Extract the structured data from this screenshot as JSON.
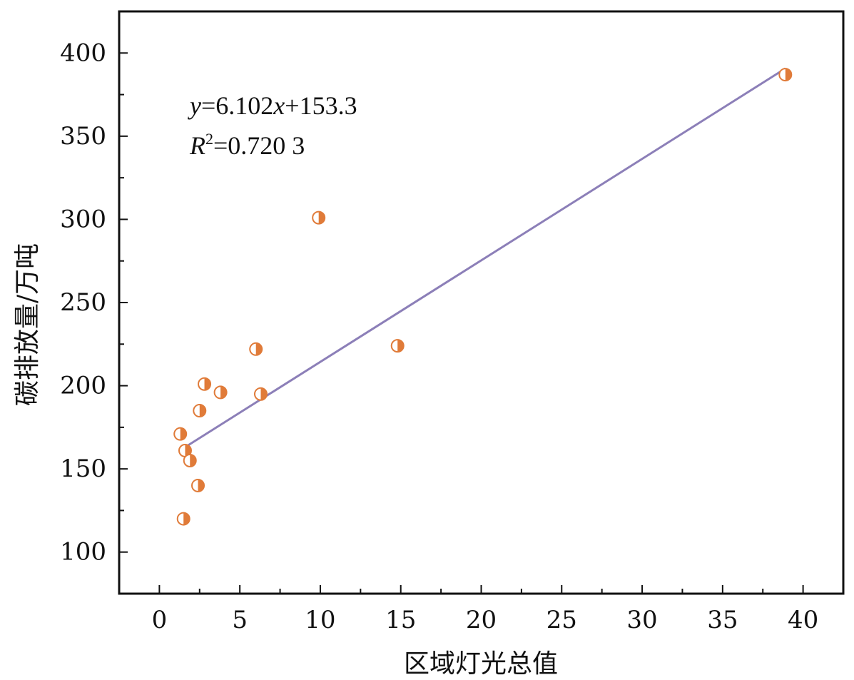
{
  "chart_data": {
    "type": "scatter",
    "xlabel": "区域灯光总值",
    "ylabel": "碳排放量/万吨",
    "xlim": [
      -2.5,
      42.5
    ],
    "ylim": [
      75,
      425
    ],
    "x_ticks": [
      "0",
      "5",
      "10",
      "15",
      "20",
      "25",
      "30",
      "35",
      "40"
    ],
    "y_ticks": [
      "100",
      "150",
      "200",
      "250",
      "300",
      "350",
      "400"
    ],
    "points": [
      {
        "x": 1.3,
        "y": 171
      },
      {
        "x": 1.6,
        "y": 161
      },
      {
        "x": 1.9,
        "y": 155
      },
      {
        "x": 1.5,
        "y": 120
      },
      {
        "x": 2.4,
        "y": 140
      },
      {
        "x": 2.5,
        "y": 185
      },
      {
        "x": 2.8,
        "y": 201
      },
      {
        "x": 3.8,
        "y": 196
      },
      {
        "x": 6.0,
        "y": 222
      },
      {
        "x": 6.3,
        "y": 195
      },
      {
        "x": 9.9,
        "y": 301
      },
      {
        "x": 14.8,
        "y": 224
      },
      {
        "x": 38.9,
        "y": 387
      }
    ],
    "fit": {
      "slope": 6.102,
      "intercept": 153.3,
      "x_range": [
        1.3,
        38.9
      ],
      "equation_text": "y=6.102x+153.3",
      "r2_text": "R2=0.720 3",
      "eq_parts": {
        "y": "y",
        "eq": "=6.102",
        "x": "x",
        "rest": "+153.3"
      },
      "r2_parts": {
        "r": "R",
        "sup": "2",
        "rest": "=0.720 3"
      }
    },
    "colors": {
      "marker": "#E07B39",
      "fit_line": "#8C7FB8",
      "axis": "#111111"
    },
    "grid": false,
    "legend": "none"
  }
}
